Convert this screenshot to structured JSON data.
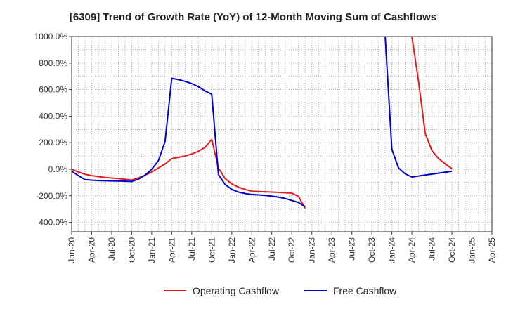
{
  "chart_data": {
    "type": "line",
    "title": "[6309]  Trend of Growth Rate (YoY) of 12-Month Moving Sum of Cashflows",
    "xlabel": "",
    "ylabel": "",
    "ylim": [
      -470,
      1000
    ],
    "y_ticks": [
      1000,
      800,
      600,
      400,
      200,
      0,
      -200,
      -400
    ],
    "y_tick_labels": [
      "1000.0%",
      "800.0%",
      "600.0%",
      "400.0%",
      "200.0%",
      "0.0%",
      "-200.0%",
      "-400.0%"
    ],
    "x_tick_labels": [
      "Jan-20",
      "Apr-20",
      "Jul-20",
      "Oct-20",
      "Jan-21",
      "Apr-21",
      "Jul-21",
      "Oct-21",
      "Jan-22",
      "Apr-22",
      "Jul-22",
      "Oct-22",
      "Jan-23",
      "Apr-23",
      "Jul-23",
      "Oct-23",
      "Jan-24",
      "Apr-24",
      "Jul-24",
      "Oct-24",
      "Jan-25",
      "Apr-25"
    ],
    "grid": true,
    "legend_position": "bottom",
    "series": [
      {
        "name": "Operating Cashflow",
        "color": "#e31a1c",
        "segments": [
          [
            [
              "Jan-20",
              0
            ],
            [
              "Feb-20",
              -20
            ],
            [
              "Mar-20",
              -38
            ],
            [
              "Apr-20",
              -48
            ],
            [
              "May-20",
              -55
            ],
            [
              "Jun-20",
              -62
            ],
            [
              "Jul-20",
              -66
            ],
            [
              "Aug-20",
              -70
            ],
            [
              "Sep-20",
              -75
            ],
            [
              "Oct-20",
              -82
            ],
            [
              "Nov-20",
              -65
            ],
            [
              "Dec-20",
              -45
            ],
            [
              "Jan-21",
              -20
            ],
            [
              "Feb-21",
              10
            ],
            [
              "Mar-21",
              40
            ],
            [
              "Apr-21",
              80
            ],
            [
              "May-21",
              90
            ],
            [
              "Jun-21",
              100
            ],
            [
              "Jul-21",
              115
            ],
            [
              "Aug-21",
              135
            ],
            [
              "Sep-21",
              165
            ],
            [
              "Oct-21",
              225
            ],
            [
              "Nov-21",
              10
            ],
            [
              "Dec-21",
              -70
            ],
            [
              "Jan-22",
              -110
            ],
            [
              "Feb-22",
              -135
            ],
            [
              "Mar-22",
              -152
            ],
            [
              "Apr-22",
              -165
            ],
            [
              "May-22",
              -168
            ],
            [
              "Jun-22",
              -170
            ],
            [
              "Jul-22",
              -172
            ],
            [
              "Aug-22",
              -174
            ],
            [
              "Sep-22",
              -177
            ],
            [
              "Oct-22",
              -180
            ],
            [
              "Nov-22",
              -205
            ],
            [
              "Dec-22",
              -295
            ]
          ],
          [
            [
              "Apr-24",
              1000
            ],
            [
              "May-24",
              660
            ],
            [
              "Jun-24",
              270
            ],
            [
              "Jul-24",
              140
            ],
            [
              "Aug-24",
              80
            ],
            [
              "Sep-24",
              40
            ],
            [
              "Oct-24",
              5
            ]
          ]
        ]
      },
      {
        "name": "Free Cashflow",
        "color": "#0000cc",
        "segments": [
          [
            [
              "Jan-20",
              -15
            ],
            [
              "Feb-20",
              -48
            ],
            [
              "Mar-20",
              -78
            ],
            [
              "Apr-20",
              -82
            ],
            [
              "May-20",
              -85
            ],
            [
              "Jun-20",
              -87
            ],
            [
              "Jul-20",
              -88
            ],
            [
              "Aug-20",
              -89
            ],
            [
              "Sep-20",
              -90
            ],
            [
              "Oct-20",
              -92
            ],
            [
              "Nov-20",
              -75
            ],
            [
              "Dec-20",
              -45
            ],
            [
              "Jan-21",
              0
            ],
            [
              "Feb-21",
              65
            ],
            [
              "Mar-21",
              210
            ],
            [
              "Apr-21",
              685
            ],
            [
              "May-21",
              675
            ],
            [
              "Jun-21",
              662
            ],
            [
              "Jul-21",
              645
            ],
            [
              "Aug-21",
              622
            ],
            [
              "Sep-21",
              590
            ],
            [
              "Oct-21",
              565
            ],
            [
              "Nov-21",
              -40
            ],
            [
              "Dec-21",
              -115
            ],
            [
              "Jan-22",
              -152
            ],
            [
              "Feb-22",
              -172
            ],
            [
              "Mar-22",
              -183
            ],
            [
              "Apr-22",
              -190
            ],
            [
              "May-22",
              -193
            ],
            [
              "Jun-22",
              -197
            ],
            [
              "Jul-22",
              -202
            ],
            [
              "Aug-22",
              -210
            ],
            [
              "Sep-22",
              -220
            ],
            [
              "Oct-22",
              -235
            ],
            [
              "Nov-22",
              -250
            ],
            [
              "Dec-22",
              -283
            ]
          ],
          [
            [
              "Dec-23",
              1000
            ],
            [
              "Jan-24",
              150
            ],
            [
              "Feb-24",
              10
            ],
            [
              "Mar-24",
              -35
            ],
            [
              "Apr-24",
              -58
            ],
            [
              "Oct-24",
              -15
            ]
          ]
        ]
      }
    ]
  }
}
